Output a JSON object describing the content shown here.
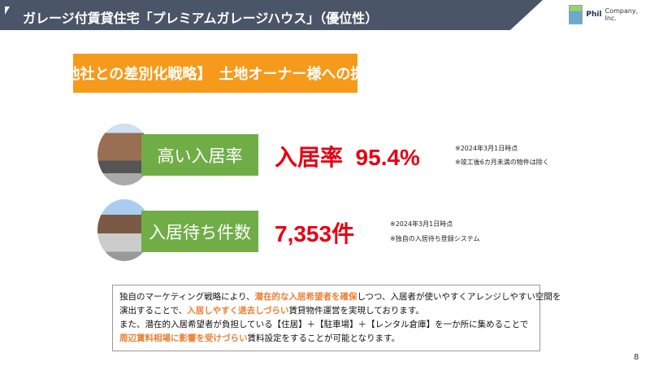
{
  "header": {
    "title": "ガレージ付賃貸住宅「プレミアムガレージハウス」（優位性）",
    "logo_brand": "Phil",
    "logo_company": "Company, Inc."
  },
  "banner": "【同業他社との差別化戦略】　土地オーナー様への提供価値",
  "items": [
    {
      "label": "高い入居率",
      "value": "入居率  95.4%",
      "notes": [
        "※2024年3月1日時点",
        "※竣工後6カ月未満の物件は除く"
      ]
    },
    {
      "label": "入居待ち件数",
      "value": "7,353件",
      "notes": [
        "※2024年3月1日時点",
        "※独自の入居待ち登録システム"
      ]
    }
  ],
  "description": {
    "lines": [
      [
        {
          "t": "独自のマーケティング戦略により、"
        },
        {
          "t": "潜在的な入居希望者を確保",
          "h": true
        },
        {
          "t": "しつつ、入居者が使いやすくアレンジしやすい空間を"
        }
      ],
      [
        {
          "t": "演出することで、"
        },
        {
          "t": "入居しやすく退去しづらい",
          "h": true
        },
        {
          "t": "賃貸物件運営を実現しております。"
        }
      ],
      [
        {
          "t": "また、潜在的入居希望者が負担している【住居】＋【駐車場】＋【レンタル倉庫】を一か所に集めることで"
        }
      ],
      [
        {
          "t": "周辺賃料相場に影響を受けづらい",
          "h": true
        },
        {
          "t": "賃料設定をすることが可能となります。"
        }
      ]
    ]
  },
  "page_number": "8",
  "colors": {
    "header": "#4a5568",
    "banner": "#f59a1b",
    "label": "#70ad47",
    "value": "#e60012",
    "highlight": "#ed7d31"
  }
}
